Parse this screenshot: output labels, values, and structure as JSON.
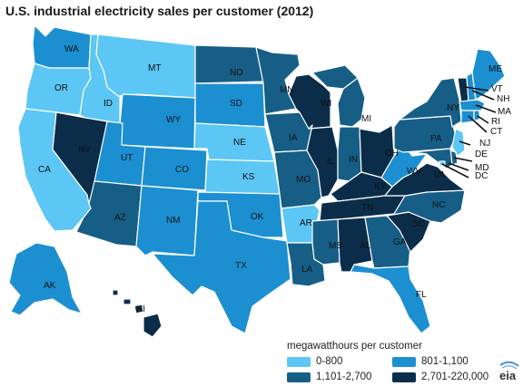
{
  "title": "U.S. industrial electricity sales per customer (2012)",
  "legend": {
    "title": "megawatthours per customer",
    "items": [
      {
        "label": "0-800",
        "color": "#5cc6f4"
      },
      {
        "label": "801-1,100",
        "color": "#1c8fd1"
      },
      {
        "label": "1,101-2,700",
        "color": "#175e86"
      },
      {
        "label": "2,701-220,000",
        "color": "#0b2d4a"
      }
    ]
  },
  "logo": "eia",
  "states": [
    {
      "code": "WA",
      "cat": 1
    },
    {
      "code": "OR",
      "cat": 0
    },
    {
      "code": "CA",
      "cat": 0
    },
    {
      "code": "ID",
      "cat": 0
    },
    {
      "code": "NV",
      "cat": 3
    },
    {
      "code": "MT",
      "cat": 0
    },
    {
      "code": "WY",
      "cat": 1
    },
    {
      "code": "UT",
      "cat": 1
    },
    {
      "code": "AZ",
      "cat": 2
    },
    {
      "code": "CO",
      "cat": 1
    },
    {
      "code": "NM",
      "cat": 1
    },
    {
      "code": "ND",
      "cat": 2
    },
    {
      "code": "SD",
      "cat": 1
    },
    {
      "code": "NE",
      "cat": 0
    },
    {
      "code": "KS",
      "cat": 0
    },
    {
      "code": "OK",
      "cat": 1
    },
    {
      "code": "TX",
      "cat": 1
    },
    {
      "code": "MN",
      "cat": 2
    },
    {
      "code": "IA",
      "cat": 2
    },
    {
      "code": "MO",
      "cat": 2
    },
    {
      "code": "AR",
      "cat": 0
    },
    {
      "code": "LA",
      "cat": 2
    },
    {
      "code": "WI",
      "cat": 3
    },
    {
      "code": "IL",
      "cat": 3
    },
    {
      "code": "MI",
      "cat": 2
    },
    {
      "code": "IN",
      "cat": 2
    },
    {
      "code": "OH",
      "cat": 3
    },
    {
      "code": "KY",
      "cat": 3
    },
    {
      "code": "TN",
      "cat": 3
    },
    {
      "code": "MS",
      "cat": 2
    },
    {
      "code": "AL",
      "cat": 3
    },
    {
      "code": "GA",
      "cat": 2
    },
    {
      "code": "FL",
      "cat": 1
    },
    {
      "code": "SC",
      "cat": 3
    },
    {
      "code": "NC",
      "cat": 2
    },
    {
      "code": "VA",
      "cat": 3
    },
    {
      "code": "WV",
      "cat": 1
    },
    {
      "code": "PA",
      "cat": 2
    },
    {
      "code": "NY",
      "cat": 2
    },
    {
      "code": "VT",
      "cat": 3
    },
    {
      "code": "NH",
      "cat": 1
    },
    {
      "code": "ME",
      "cat": 1
    },
    {
      "code": "MA",
      "cat": 1
    },
    {
      "code": "CT",
      "cat": 1
    },
    {
      "code": "RI",
      "cat": 1
    },
    {
      "code": "NJ",
      "cat": 0
    },
    {
      "code": "DE",
      "cat": 2
    },
    {
      "code": "MD",
      "cat": 2
    },
    {
      "code": "DC",
      "cat": 0
    },
    {
      "code": "AK",
      "cat": 1
    },
    {
      "code": "HI",
      "cat": 3
    }
  ]
}
